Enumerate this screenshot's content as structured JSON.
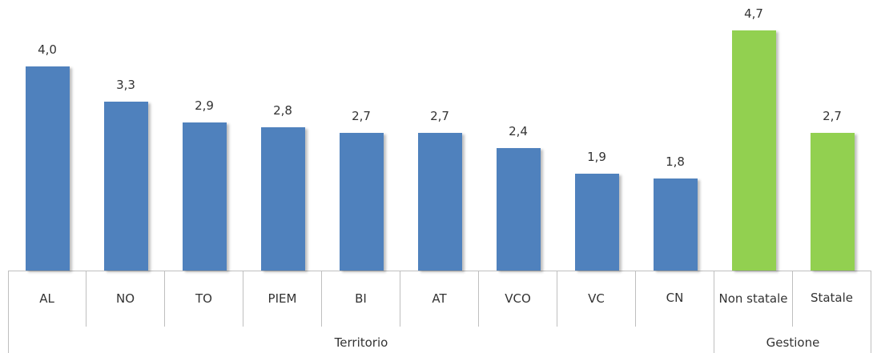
{
  "chart_data": {
    "type": "bar",
    "groups": [
      {
        "name": "Territorio",
        "color": "#4f81bd",
        "categories": [
          "AL",
          "NO",
          "TO",
          "PIEM",
          "BI",
          "AT",
          "VCO",
          "VC",
          "CN"
        ],
        "values": [
          4.0,
          3.3,
          2.9,
          2.8,
          2.7,
          2.7,
          2.4,
          1.9,
          1.8
        ],
        "value_labels": [
          "4,0",
          "3,3",
          "2,9",
          "2,8",
          "2,7",
          "2,7",
          "2,4",
          "1,9",
          "1,8"
        ]
      },
      {
        "name": "Gestione",
        "color": "#92d050",
        "categories": [
          "Non statale",
          "Statale"
        ],
        "values": [
          4.7,
          2.7
        ],
        "value_labels": [
          "4,7",
          "2,7"
        ]
      }
    ]
  }
}
